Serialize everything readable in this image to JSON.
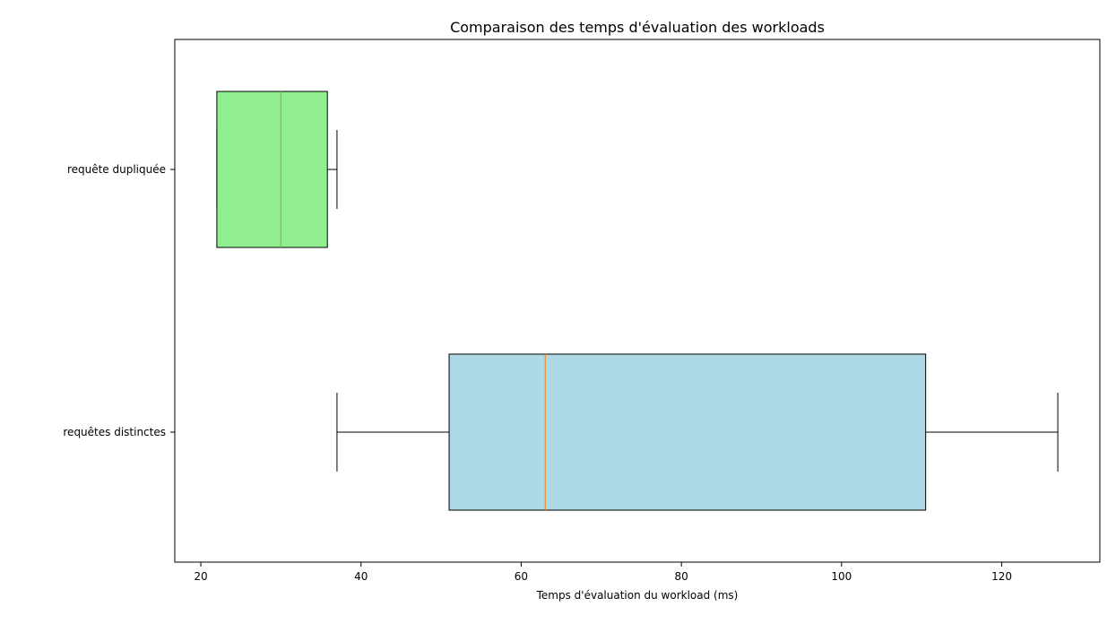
{
  "chart_data": {
    "type": "boxplot",
    "orientation": "horizontal",
    "title": "Comparaison des temps d'évaluation des workloads",
    "xlabel": "Temps d'évaluation du workload (ms)",
    "ylabel": "",
    "xlim": [
      16.75,
      132.25
    ],
    "xticks": [
      20,
      40,
      60,
      80,
      100,
      120
    ],
    "grid": false,
    "categories": [
      "requête dupliquée",
      "requêtes distinctes"
    ],
    "series": [
      {
        "category": "requête dupliquée",
        "whisker_low": 22,
        "q1": 22,
        "median": 30,
        "q3": 35.8,
        "whisker_high": 37,
        "fill": "#90ee90"
      },
      {
        "category": "requêtes distinctes",
        "whisker_low": 37,
        "q1": 51,
        "median": 63,
        "q3": 110.5,
        "whisker_high": 127,
        "fill": "#add8e6"
      }
    ],
    "median_color": "#ff7f0e"
  }
}
